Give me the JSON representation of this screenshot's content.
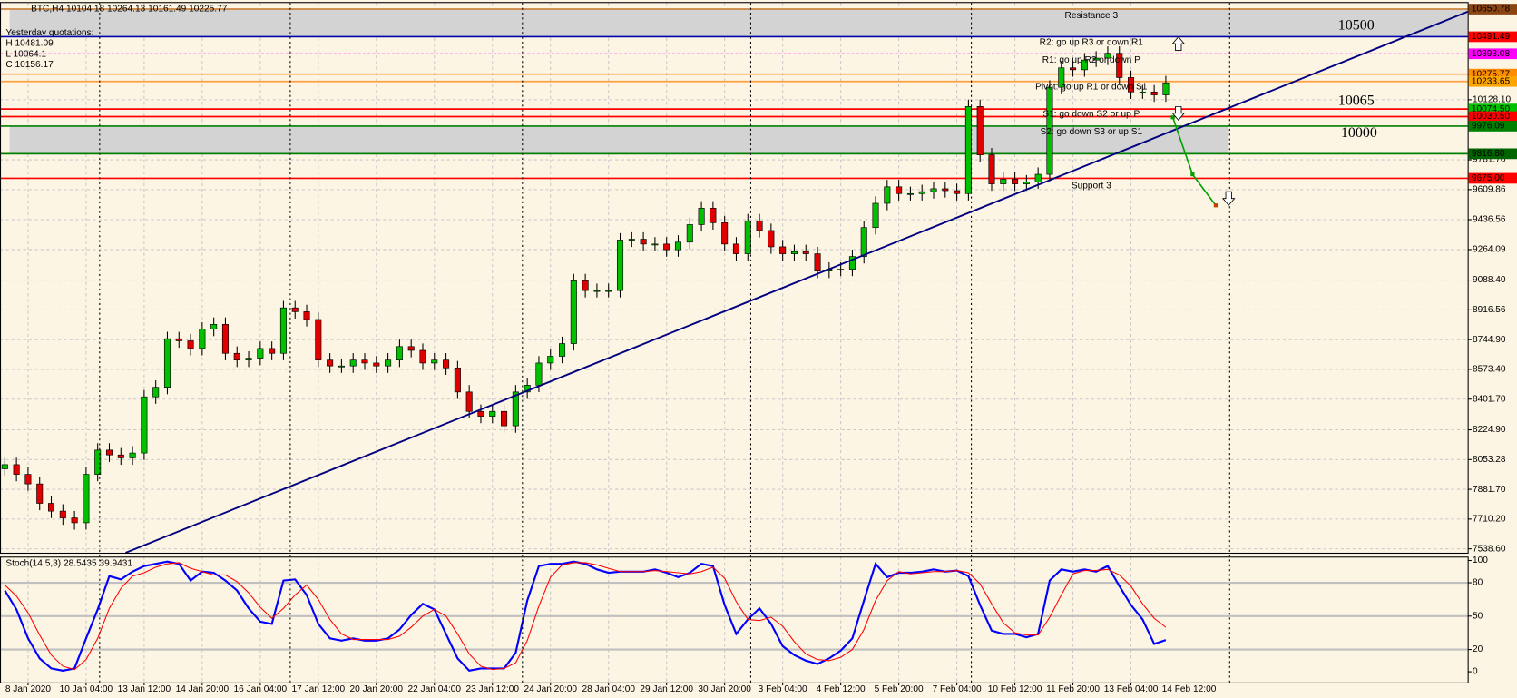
{
  "chart_data": [
    {
      "type": "candlestick",
      "title": "BTC,H4",
      "ohlc": [
        10104.18,
        10264.13,
        10161.49,
        10225.77
      ],
      "info": [
        "Yesterday quotations:",
        "H 10481.09",
        "L 10064.1",
        "C 10156.17"
      ],
      "categories": [
        null,
        null,
        "8 Jan 2020",
        null,
        null,
        null,
        null,
        "10 Jan 04:00",
        null,
        null,
        null,
        null,
        "13 Jan 12:00",
        null,
        null,
        null,
        null,
        "14 Jan 20:00",
        null,
        null,
        null,
        null,
        "16 Jan 04:00",
        null,
        null,
        null,
        null,
        "17 Jan 12:00",
        null,
        null,
        null,
        null,
        "20 Jan 20:00",
        null,
        null,
        null,
        null,
        "22 Jan 04:00",
        null,
        null,
        null,
        null,
        "23 Jan 12:00",
        null,
        null,
        null,
        null,
        "24 Jan 20:00",
        null,
        null,
        null,
        null,
        "28 Jan 04:00",
        null,
        null,
        null,
        null,
        "29 Jan 12:00",
        null,
        null,
        null,
        null,
        "30 Jan 20:00",
        null,
        null,
        null,
        null,
        "3 Feb 04:00",
        null,
        null,
        null,
        null,
        "4 Feb 12:00",
        null,
        null,
        null,
        null,
        "5 Feb 20:00",
        null,
        null,
        null,
        null,
        "7 Feb 04:00",
        null,
        null,
        null,
        null,
        "10 Feb 12:00",
        null,
        null,
        null,
        null,
        "11 Feb 20:00",
        null,
        null,
        null,
        null,
        "13 Feb 04:00",
        null,
        null,
        null,
        null,
        "14 Feb 12:00"
      ],
      "open": [
        8000,
        8024,
        7968,
        7913,
        7801,
        7756,
        7717,
        7689,
        7968,
        8108,
        8080,
        8063,
        8091,
        8415,
        8470,
        8750,
        8738,
        8694,
        8805,
        8833,
        8666,
        8627,
        8638,
        8694,
        8666,
        8928,
        8906,
        8861,
        8627,
        8593,
        8593,
        8627,
        8610,
        8593,
        8627,
        8705,
        8683,
        8610,
        8627,
        8582,
        8443,
        8331,
        8303,
        8331,
        8248,
        8443,
        8482,
        8610,
        8649,
        8722,
        9084,
        9028,
        9028,
        9028,
        9319,
        9324,
        9296,
        9296,
        9263,
        9307,
        9408,
        9503,
        9419,
        9296,
        9240,
        9430,
        9374,
        9280,
        9240,
        9252,
        9240,
        9140,
        9151,
        9151,
        9224,
        9391,
        9531,
        9626,
        9587,
        9587,
        9598,
        9615,
        9604,
        9587,
        10089,
        9810,
        9643,
        9670,
        9643,
        9654,
        9698,
        10200,
        10312,
        10301,
        10357,
        10368,
        10396,
        10256,
        10173,
        10173,
        10156,
        null,
        null
      ],
      "high": [
        8064,
        8064,
        8008,
        7953,
        7841,
        7796,
        7757,
        8008,
        8148,
        8148,
        8120,
        8131,
        8455,
        8510,
        8790,
        8790,
        8778,
        8845,
        8873,
        8873,
        8706,
        8678,
        8734,
        8734,
        8968,
        8968,
        8946,
        8901,
        8667,
        8633,
        8667,
        8667,
        8650,
        8667,
        8745,
        8745,
        8723,
        8667,
        8667,
        8622,
        8483,
        8371,
        8371,
        8371,
        8483,
        8522,
        8650,
        8689,
        8762,
        9124,
        9124,
        9068,
        9068,
        9359,
        9364,
        9364,
        9336,
        9336,
        9347,
        9448,
        9543,
        9543,
        9459,
        9336,
        9470,
        9470,
        9414,
        9320,
        9292,
        9292,
        9280,
        9191,
        9191,
        9264,
        9431,
        9571,
        9666,
        9666,
        9627,
        9638,
        9655,
        9655,
        9644,
        10129,
        10129,
        9850,
        9710,
        9710,
        9694,
        9738,
        10240,
        10352,
        10352,
        10397,
        10408,
        10436,
        10436,
        10296,
        10213,
        10213,
        10266,
        null,
        null
      ],
      "low": [
        7960,
        7928,
        7873,
        7761,
        7716,
        7677,
        7649,
        7649,
        7928,
        8040,
        8023,
        8023,
        8051,
        8375,
        8430,
        8698,
        8654,
        8654,
        8765,
        8626,
        8587,
        8587,
        8598,
        8626,
        8626,
        8866,
        8821,
        8587,
        8553,
        8553,
        8553,
        8570,
        8553,
        8553,
        8587,
        8643,
        8570,
        8570,
        8542,
        8403,
        8291,
        8263,
        8263,
        8208,
        8208,
        8403,
        8442,
        8570,
        8609,
        8682,
        8988,
        8988,
        8988,
        8988,
        9279,
        9256,
        9256,
        9223,
        9223,
        9267,
        9368,
        9379,
        9256,
        9200,
        9200,
        9334,
        9240,
        9200,
        9200,
        9200,
        9100,
        9100,
        9111,
        9111,
        9184,
        9351,
        9491,
        9547,
        9547,
        9547,
        9558,
        9564,
        9547,
        9547,
        9770,
        9603,
        9603,
        9603,
        9603,
        9614,
        9658,
        10160,
        10261,
        10261,
        10317,
        10328,
        10216,
        10133,
        10133,
        10116,
        10116,
        null,
        null
      ],
      "close": [
        8024,
        7968,
        7913,
        7801,
        7756,
        7717,
        7689,
        7968,
        8108,
        8080,
        8063,
        8091,
        8415,
        8470,
        8750,
        8738,
        8694,
        8805,
        8833,
        8666,
        8627,
        8638,
        8694,
        8666,
        8928,
        8906,
        8861,
        8627,
        8593,
        8593,
        8627,
        8610,
        8593,
        8627,
        8705,
        8683,
        8610,
        8627,
        8582,
        8443,
        8331,
        8303,
        8331,
        8248,
        8443,
        8482,
        8610,
        8649,
        8722,
        9084,
        9028,
        9028,
        9028,
        9319,
        9324,
        9296,
        9296,
        9263,
        9307,
        9408,
        9503,
        9419,
        9296,
        9240,
        9430,
        9374,
        9280,
        9240,
        9252,
        9240,
        9140,
        9151,
        9151,
        9224,
        9391,
        9531,
        9626,
        9587,
        9587,
        9598,
        9615,
        9604,
        9587,
        10089,
        9810,
        9643,
        9670,
        9643,
        9654,
        9698,
        10200,
        10312,
        10301,
        10357,
        10368,
        10396,
        10256,
        10173,
        10173,
        10156,
        10225.77,
        null,
        null
      ],
      "up_color": "#00c000",
      "down_color": "#e00000",
      "ylim": [
        7516,
        10686
      ],
      "yticks": [
        {
          "value": 7538.6,
          "label": "7538.60"
        },
        {
          "value": 7710.2,
          "label": "7710.20"
        },
        {
          "value": 7881.7,
          "label": "7881.70"
        },
        8053.28,
        {
          "value": 8224.9,
          "label": "8224.90"
        },
        {
          "value": 8401.7,
          "label": "8401.70"
        },
        {
          "value": 8573.4,
          "label": "8573.40"
        },
        {
          "value": 8744.9,
          "label": "8744.90"
        },
        8916.56,
        {
          "value": 9088.4,
          "label": "9088.40"
        },
        9264.09,
        9436.56,
        9609.86,
        {
          "value": 9781.7,
          "label": "9781.70"
        },
        {
          "value": 10128.1,
          "label": "10128.10"
        }
      ],
      "grid": true,
      "levels": [
        {
          "value": 10650.78,
          "color": "#8b4513",
          "line_color": "#cd853f"
        },
        {
          "value": 10491.49,
          "color": "#ff0000",
          "line_color": "#0000aa"
        },
        {
          "value": 10393.08,
          "color": "#ff00ff",
          "line_color": "#ff00ff",
          "dashed": true
        },
        {
          "value": 10275.77,
          "color": "#ff8c00",
          "line_color": "#ffa040"
        },
        {
          "value": 10233.65,
          "color": "#ffa500",
          "line_color": "#ffa040"
        },
        {
          "value": 10074.5,
          "label": "10074.50",
          "color": "#00c000",
          "line_color": "#ff0000"
        },
        {
          "value": 10030.5,
          "label": "10030.50",
          "color": "#ff0000",
          "line_color": "#ff0000"
        },
        {
          "value": 9976.09,
          "color": "#008000",
          "line_color": "#008000"
        },
        {
          "value": 9816.8,
          "label": "9816.80",
          "color": "#006400",
          "line_color": "#008000"
        },
        {
          "value": 9675,
          "label": "9675.00",
          "color": "#ff0000",
          "line_color": "#ff0000"
        }
      ],
      "annotations": [
        {
          "text": "Resistance 3",
          "color": "#a0522d"
        },
        {
          "text": "R2: go up R3 or down R1",
          "color": "#ff0000"
        },
        {
          "text": "R1: go up R2 or down P",
          "color": "#ff00ff"
        },
        {
          "text": "Pivot: go up R1 or down S1",
          "color": "#daa520"
        },
        {
          "text": "S1: go down S2 or up P",
          "color": "#00c000"
        },
        {
          "text": "S2: go down S3 or up S1",
          "color": "#008000"
        },
        {
          "text": "Support 3",
          "color": "#008000"
        }
      ],
      "round_levels": [
        "10500",
        "10065",
        "10000"
      ],
      "trend_line": {
        "x": [
          10.4,
          126
        ],
        "y": [
          7516,
          10636
        ],
        "color": "#000080"
      },
      "projection": {
        "x": [
          100.6,
          102.3,
          104.3
        ],
        "y": [
          10027,
          9698,
          9519
        ],
        "color": "#00a000"
      }
    },
    {
      "type": "line",
      "title": "Stoch(14,5,3)",
      "ylim": [
        -9.6,
        103.5
      ],
      "yticks": [
        0,
        20,
        50,
        80,
        100
      ],
      "series": [
        {
          "color": "#0000ff",
          "values": [
            73,
            56,
            30,
            12,
            3,
            1,
            3,
            30,
            56,
            86,
            83,
            90,
            95,
            97,
            99,
            97,
            82,
            90,
            89,
            82,
            73,
            57,
            45,
            43,
            82,
            83,
            69,
            43,
            30,
            28,
            30,
            28,
            28,
            30,
            38,
            51,
            61,
            56,
            34,
            12,
            1,
            3,
            3,
            3,
            17,
            64,
            95,
            97,
            97,
            99,
            97,
            92,
            89,
            90,
            90,
            90,
            92,
            89,
            85,
            89,
            97,
            95,
            60,
            34,
            47,
            57,
            43,
            23,
            15,
            10,
            7,
            12,
            19,
            30,
            64,
            97,
            85,
            89,
            89,
            90,
            92,
            90,
            91,
            86,
            60,
            37,
            34,
            34,
            31,
            34,
            82,
            92,
            90,
            92,
            90,
            95,
            77,
            60,
            47,
            25,
            28.5435,
            null,
            null
          ]
        },
        {
          "color": "#ff0000",
          "values": [
            78,
            68,
            53,
            33,
            15,
            5,
            2,
            11,
            30,
            57,
            75,
            86,
            89,
            94,
            97,
            98,
            93,
            90,
            87,
            87,
            81,
            71,
            58,
            48,
            57,
            69,
            78,
            65,
            47,
            34,
            29,
            29,
            29,
            29,
            32,
            40,
            50,
            56,
            50,
            34,
            16,
            5,
            2,
            3,
            8,
            28,
            59,
            85,
            96,
            98,
            98,
            96,
            93,
            90,
            90,
            90,
            91,
            90,
            89,
            88,
            90,
            94,
            84,
            63,
            47,
            46,
            49,
            41,
            27,
            16,
            11,
            10,
            13,
            20,
            38,
            64,
            82,
            90,
            88,
            89,
            90,
            90,
            91,
            89,
            79,
            61,
            44,
            35,
            33,
            33,
            49,
            69,
            88,
            91,
            91,
            92,
            87,
            77,
            61,
            48,
            39.9431,
            null,
            null
          ]
        }
      ]
    }
  ]
}
